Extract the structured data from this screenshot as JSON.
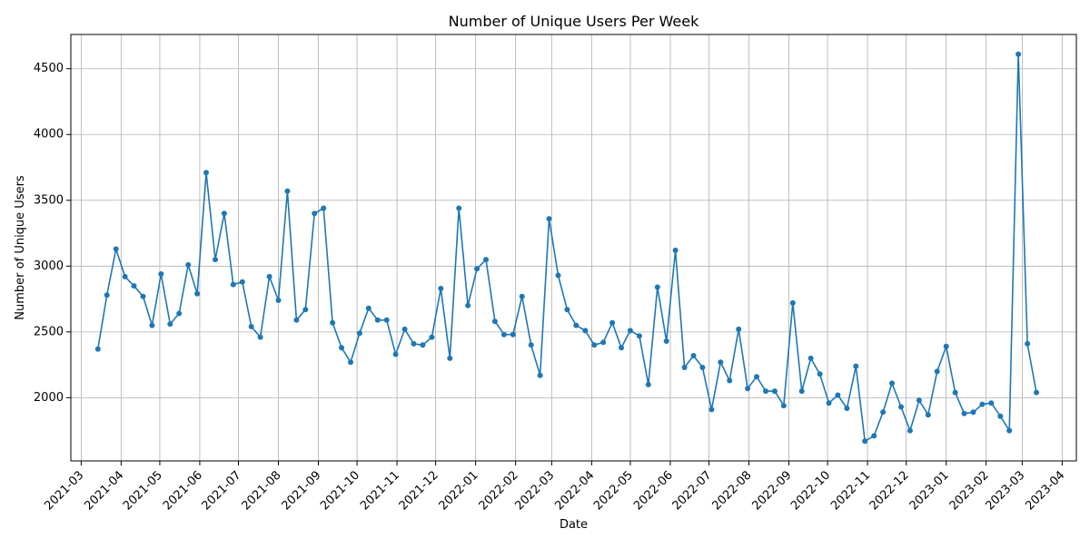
{
  "chart_data": {
    "type": "line",
    "title": "Number of Unique Users Per Week",
    "xlabel": "Date",
    "ylabel": "Number of Unique Users",
    "grid": true,
    "color": "#1f77b4",
    "xlim": [
      "2021-02-21",
      "2023-04-12"
    ],
    "ylim": [
      1520,
      4760
    ],
    "yticks": [
      2000,
      2500,
      3000,
      3500,
      4000,
      4500
    ],
    "xticks": [
      "2021-03",
      "2021-04",
      "2021-05",
      "2021-06",
      "2021-07",
      "2021-08",
      "2021-09",
      "2021-10",
      "2021-11",
      "2021-12",
      "2022-01",
      "2022-02",
      "2022-03",
      "2022-04",
      "2022-05",
      "2022-06",
      "2022-07",
      "2022-08",
      "2022-09",
      "2022-10",
      "2022-11",
      "2022-12",
      "2023-01",
      "2023-02",
      "2023-03",
      "2023-04"
    ],
    "start_date": "2021-03-14",
    "step_days": 7,
    "values": [
      2370,
      2780,
      3130,
      2920,
      2850,
      2770,
      2550,
      2940,
      2560,
      2640,
      3010,
      2790,
      3710,
      3050,
      3400,
      2860,
      2880,
      2540,
      2460,
      2920,
      2740,
      3570,
      2590,
      2670,
      3400,
      3440,
      2570,
      2380,
      2270,
      2490,
      2680,
      2590,
      2590,
      2330,
      2520,
      2410,
      2400,
      2460,
      2830,
      2300,
      3440,
      2700,
      2980,
      3050,
      2580,
      2480,
      2480,
      2770,
      2400,
      2170,
      3360,
      2930,
      2670,
      2550,
      2510,
      2400,
      2420,
      2570,
      2380,
      2510,
      2470,
      2100,
      2840,
      2430,
      3120,
      2230,
      2320,
      2230,
      1910,
      2270,
      2130,
      2520,
      2070,
      2160,
      2050,
      2050,
      1940,
      2720,
      2050,
      2300,
      2180,
      1960,
      2020,
      1920,
      2240,
      1670,
      1710,
      1890,
      2110,
      1930,
      1750,
      1980,
      1870,
      2200,
      2390,
      2040,
      1880,
      1890,
      1950,
      1960,
      1860,
      1750,
      4610,
      2410,
      2040
    ]
  }
}
